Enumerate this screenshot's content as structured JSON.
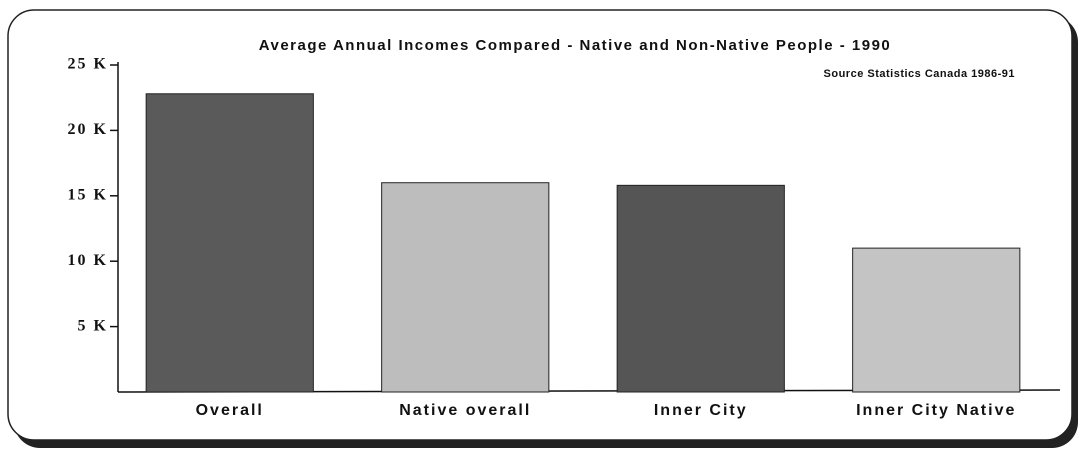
{
  "chart_data": {
    "type": "bar",
    "title": "Average Annual Incomes Compared - Native and Non-Native People - 1990",
    "subtitle": "Source Statistics Canada 1986-91",
    "categories": [
      "Overall",
      "Native overall",
      "Inner City",
      "Inner City Native"
    ],
    "values": [
      22.8,
      16,
      15.8,
      11
    ],
    "colors": [
      "#5a5a5a",
      "#bdbdbd",
      "#555555",
      "#c4c4c4"
    ],
    "ylim": [
      0,
      25
    ],
    "yticks": [
      {
        "value": 5,
        "label": "5 K"
      },
      {
        "value": 10,
        "label": "10 K"
      },
      {
        "value": 15,
        "label": "15 K"
      },
      {
        "value": 20,
        "label": "20 K"
      },
      {
        "value": 25,
        "label": "25 K"
      }
    ]
  }
}
